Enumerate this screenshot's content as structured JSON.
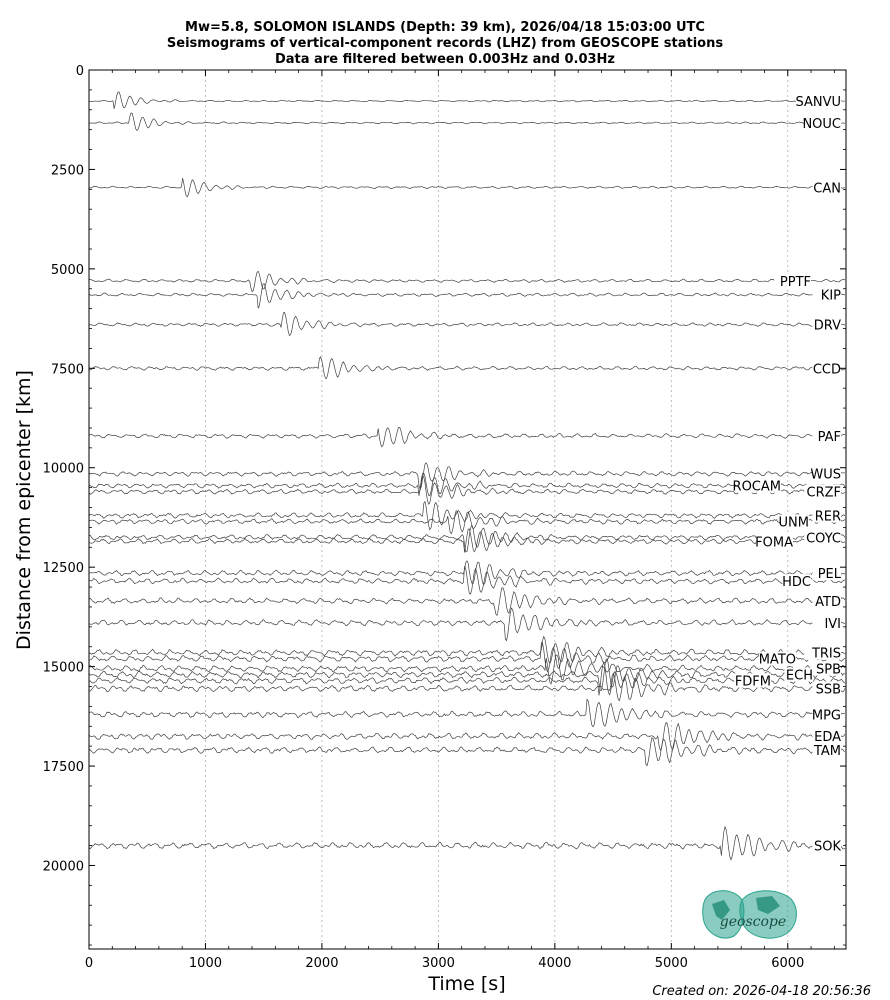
{
  "chart_data": {
    "type": "line",
    "title_lines": [
      "Mw=5.8, SOLOMON ISLANDS (Depth: 39 km), 2026/04/18 15:03:00 UTC",
      "Seismograms of vertical-component records (LHZ) from GEOSCOPE stations",
      "Data are filtered between 0.003Hz and 0.03Hz"
    ],
    "xlabel": "Time [s]",
    "ylabel": "Distance from epicenter [km]",
    "xlim": [
      0,
      6500
    ],
    "ylim": [
      22100,
      0
    ],
    "y_inverted": true,
    "xticks": [
      0,
      1000,
      2000,
      3000,
      4000,
      5000,
      6000
    ],
    "yticks": [
      0,
      2500,
      5000,
      7500,
      10000,
      12500,
      15000,
      17500,
      20000
    ],
    "grid_x": true,
    "grid_y": false,
    "stations": [
      {
        "name": "SANVU",
        "distance": 780,
        "arrival": 240,
        "label_dx": 0
      },
      {
        "name": "NOUC",
        "distance": 1330,
        "arrival": 370,
        "label_dx": 0
      },
      {
        "name": "CAN",
        "distance": 2950,
        "arrival": 820,
        "label_dx": 0
      },
      {
        "name": "PPTF",
        "distance": 5300,
        "arrival": 1400,
        "label_dx": -30
      },
      {
        "name": "KIP",
        "distance": 5650,
        "arrival": 1470,
        "label_dx": 0
      },
      {
        "name": "DRV",
        "distance": 6400,
        "arrival": 1670,
        "label_dx": 0
      },
      {
        "name": "CCD",
        "distance": 7500,
        "arrival": 2000,
        "label_dx": 0
      },
      {
        "name": "PAF",
        "distance": 9200,
        "arrival": 2500,
        "label_dx": 0
      },
      {
        "name": "WUS",
        "distance": 10150,
        "arrival": 2850,
        "label_dx": 0
      },
      {
        "name": "ROCAM",
        "distance": 10450,
        "arrival": 2850,
        "label_dx": -60
      },
      {
        "name": "CRZF",
        "distance": 10600,
        "arrival": 2870,
        "label_dx": 0
      },
      {
        "name": "RER",
        "distance": 11200,
        "arrival": 2900,
        "label_dx": 0
      },
      {
        "name": "UNM",
        "distance": 11350,
        "arrival": 3100,
        "label_dx": -32
      },
      {
        "name": "COYC",
        "distance": 11750,
        "arrival": 3250,
        "label_dx": 0
      },
      {
        "name": "FOMA",
        "distance": 11850,
        "arrival": 3250,
        "label_dx": -48
      },
      {
        "name": "PEL",
        "distance": 12650,
        "arrival": 3250,
        "label_dx": 0
      },
      {
        "name": "HDC",
        "distance": 12850,
        "arrival": 3250,
        "label_dx": -30
      },
      {
        "name": "ATD",
        "distance": 13350,
        "arrival": 3500,
        "label_dx": 0
      },
      {
        "name": "IVI",
        "distance": 13900,
        "arrival": 3600,
        "label_dx": 0
      },
      {
        "name": "TRIS",
        "distance": 14650,
        "arrival": 3900,
        "label_dx": 0
      },
      {
        "name": "MATO",
        "distance": 14800,
        "arrival": 3900,
        "label_dx": -45
      },
      {
        "name": "SPB",
        "distance": 15050,
        "arrival": 3950,
        "label_dx": 0
      },
      {
        "name": "ECH",
        "distance": 15200,
        "arrival": 4400,
        "label_dx": -28
      },
      {
        "name": "FDFM",
        "distance": 15350,
        "arrival": 4400,
        "label_dx": -70
      },
      {
        "name": "SSB",
        "distance": 15550,
        "arrival": 4500,
        "label_dx": 0
      },
      {
        "name": "MPG",
        "distance": 16200,
        "arrival": 4300,
        "label_dx": 0
      },
      {
        "name": "EDA",
        "distance": 16750,
        "arrival": 4900,
        "label_dx": 0
      },
      {
        "name": "TAM",
        "distance": 17100,
        "arrival": 4800,
        "label_dx": 0
      },
      {
        "name": "SOK",
        "distance": 19500,
        "arrival": 5450,
        "label_dx": 0
      }
    ]
  },
  "footer": {
    "created": "Created on: 2026-04-18 20:56:36"
  },
  "logo": {
    "text": "geoscope",
    "color": "#2aa38c"
  }
}
